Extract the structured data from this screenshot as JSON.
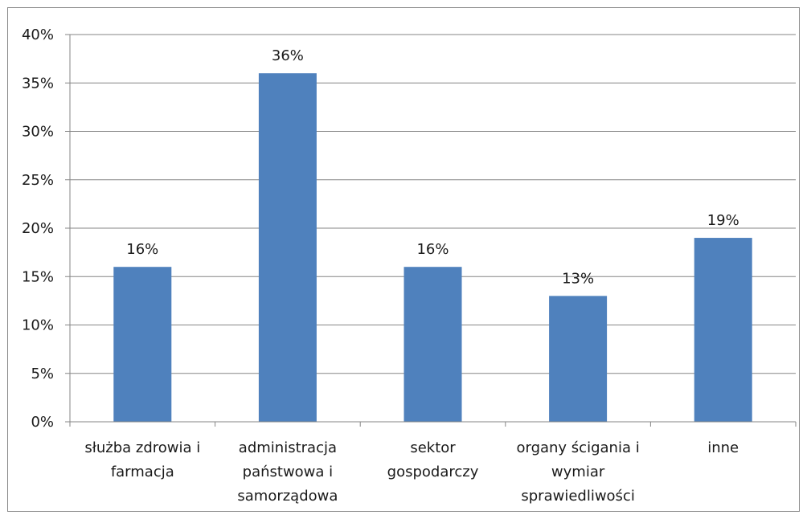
{
  "chart_data": {
    "type": "bar",
    "categories": [
      [
        "służba zdrowia i",
        "farmacja"
      ],
      [
        "administracja",
        "państwowa i",
        "samorządowa"
      ],
      [
        "sektor",
        "gospodarczy"
      ],
      [
        "organy ścigania i",
        "wymiar",
        "sprawiedliwości"
      ],
      [
        "inne"
      ]
    ],
    "values": [
      16,
      36,
      16,
      13,
      19
    ],
    "data_labels": [
      "16%",
      "36%",
      "16%",
      "13%",
      "19%"
    ],
    "title": "",
    "xlabel": "",
    "ylabel": "",
    "ylim": [
      0,
      40
    ],
    "yticks": [
      0,
      5,
      10,
      15,
      20,
      25,
      30,
      35,
      40
    ],
    "ytick_labels": [
      "0%",
      "5%",
      "10%",
      "15%",
      "20%",
      "25%",
      "30%",
      "35%",
      "40%"
    ],
    "grid": true,
    "legend": "none",
    "colors": {
      "bar": "#4f81bd",
      "grid": "#868686",
      "axis": "#868686",
      "text": "#1a1a1a"
    }
  }
}
